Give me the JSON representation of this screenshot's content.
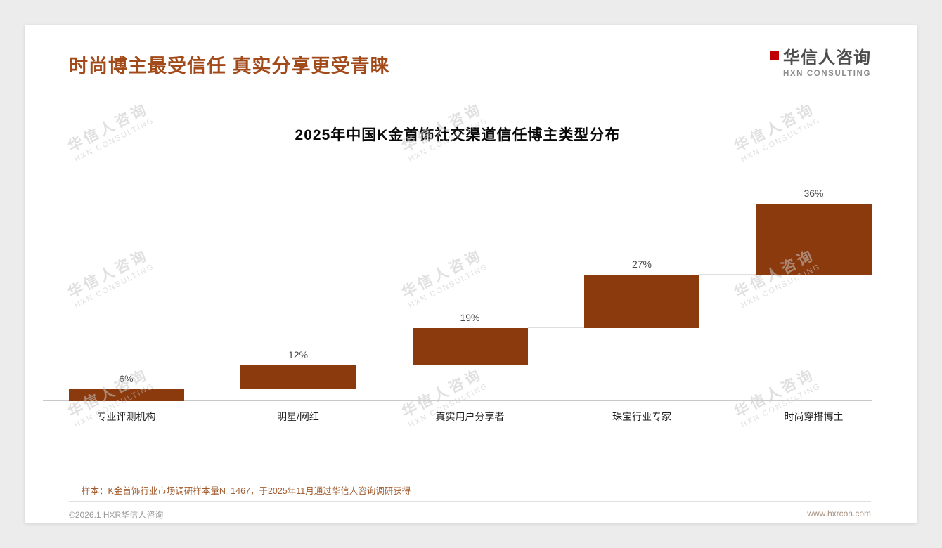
{
  "page": {
    "title": "时尚博主最受信任 真实分享更受青睐",
    "note": "样本：K金首饰行业市场调研样本量N=1467，于2025年11月通过华信人咨询调研获得",
    "footer_left": "©2026.1 HXR华信人咨询",
    "footer_right": "www.hxrcon.com"
  },
  "logo": {
    "name": "华信人咨询",
    "subtitle": "HXN CONSULTING"
  },
  "watermark": {
    "line1": "华信人咨询",
    "line2": "HXN CONSULTING"
  },
  "colors": {
    "accent_title": "#A24A1A",
    "bar": "#8B3A0E",
    "logo_red": "#C00000",
    "note_brown": "#A05A2C"
  },
  "chart_data": {
    "type": "bar",
    "variant": "waterfall-stair",
    "title": "2025年中国K金首饰社交渠道信任博主类型分布",
    "categories": [
      "专业评测机构",
      "明星/网红",
      "真实用户分享者",
      "珠宝行业专家",
      "时尚穿搭博主"
    ],
    "values": [
      6,
      12,
      19,
      27,
      36
    ],
    "labels": [
      "6%",
      "12%",
      "19%",
      "27%",
      "36%"
    ],
    "cumulative": [
      6,
      18,
      37,
      64,
      100
    ],
    "ylim": [
      0,
      100
    ],
    "grid": false,
    "legend": false,
    "bar_color": "#8B3A0E"
  }
}
